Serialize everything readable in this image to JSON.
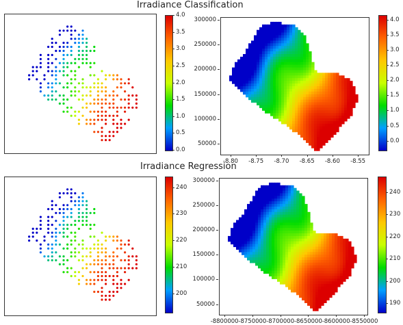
{
  "titles": {
    "top": "Irradiance Classification",
    "bottom": "Irradiance Regression"
  },
  "colormap": [
    "#0000c8",
    "#00a0ff",
    "#00dc00",
    "#c8ff00",
    "#ffc800",
    "#ff6400",
    "#dc0000"
  ],
  "chart_data": [
    {
      "type": "scatter",
      "name_ref": "classification-points",
      "colorbar": {
        "min": 0.0,
        "max": 4.0,
        "ticks": [
          "0.0",
          "0.5",
          "1.0",
          "1.5",
          "2.0",
          "2.5",
          "3.0",
          "3.5",
          "4.0"
        ]
      },
      "axes": "none"
    },
    {
      "type": "heatmap",
      "name_ref": "classification-map",
      "xlim": [
        -8.82,
        -8.53
      ],
      "ylim": [
        30000,
        305000
      ],
      "xticks": [
        "-8.80",
        "-8.75",
        "-8.70",
        "-8.65",
        "-8.60",
        "-8.55"
      ],
      "yticks": [
        "50000",
        "100000",
        "150000",
        "200000",
        "250000",
        "300000"
      ],
      "colorbar": {
        "min": -0.3,
        "max": 4.15,
        "ticks": [
          "0.0",
          "0.5",
          "1.0",
          "1.5",
          "2.0",
          "2.5",
          "3.0",
          "3.5",
          "4.0"
        ]
      }
    },
    {
      "type": "scatter",
      "name_ref": "regression-points",
      "colorbar": {
        "min": 193,
        "max": 244,
        "ticks": [
          "200",
          "210",
          "220",
          "230",
          "240"
        ]
      },
      "axes": "none"
    },
    {
      "type": "heatmap",
      "name_ref": "regression-map",
      "xlim": [
        -8810000,
        -8545000
      ],
      "ylim": [
        30000,
        305000
      ],
      "xticks": [
        "-8800000",
        "-8750000",
        "-8700000",
        "-8650000",
        "-8600000",
        "-8550000"
      ],
      "yticks": [
        "50000",
        "100000",
        "150000",
        "200000",
        "250000",
        "300000"
      ],
      "colorbar": {
        "min": 186,
        "max": 247,
        "ticks": [
          "190",
          "200",
          "210",
          "220",
          "230",
          "240"
        ]
      }
    }
  ]
}
